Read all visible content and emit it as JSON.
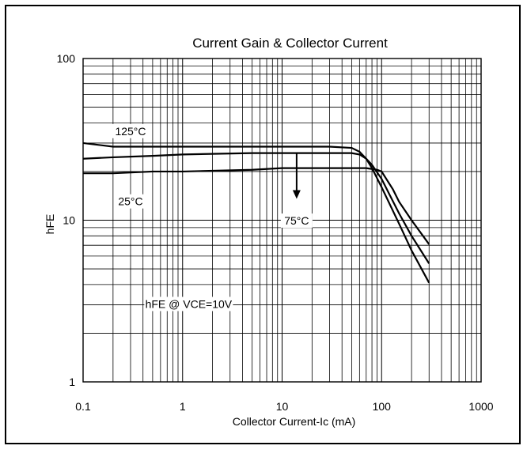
{
  "chart_data": {
    "type": "line",
    "title": "Current Gain & Collector Current",
    "xlabel": "Collector Current-Ic (mA)",
    "ylabel": "hFE",
    "x_scale": "log",
    "y_scale": "log",
    "xlim": [
      0.1,
      1000
    ],
    "ylim": [
      1,
      100
    ],
    "x_ticks": [
      "0.1",
      "1",
      "10",
      "100",
      "1000"
    ],
    "y_ticks": [
      "1",
      "10",
      "100"
    ],
    "grid": true,
    "series": [
      {
        "name": "125°C",
        "x": [
          0.1,
          0.2,
          0.5,
          1,
          5,
          10,
          30,
          50,
          60,
          70,
          80,
          100,
          150,
          200,
          300
        ],
        "y": [
          30,
          28.5,
          28.5,
          28.5,
          28.5,
          28.5,
          28.5,
          28,
          26.5,
          24,
          21,
          16,
          9.5,
          6.5,
          4.1
        ]
      },
      {
        "name": "75°C",
        "x": [
          0.1,
          0.2,
          0.5,
          1,
          5,
          10,
          30,
          50,
          60,
          70,
          80,
          100,
          150,
          200,
          300
        ],
        "y": [
          24,
          24.5,
          25,
          25.5,
          26,
          26,
          26,
          26,
          25.5,
          24,
          22,
          18,
          11,
          8,
          5.4
        ]
      },
      {
        "name": "25°C",
        "x": [
          0.1,
          0.2,
          0.5,
          1,
          5,
          10,
          30,
          50,
          70,
          90,
          100,
          130,
          150,
          200,
          300
        ],
        "y": [
          19.5,
          19.5,
          20,
          20,
          20.5,
          21,
          21,
          21,
          21,
          20.5,
          20,
          15.5,
          13,
          10,
          7.1
        ]
      }
    ],
    "annotations": [
      {
        "text": "125°C"
      },
      {
        "text": "25°C"
      },
      {
        "text": "75°C"
      },
      {
        "text": "hFE @ VCE=10V"
      }
    ]
  }
}
